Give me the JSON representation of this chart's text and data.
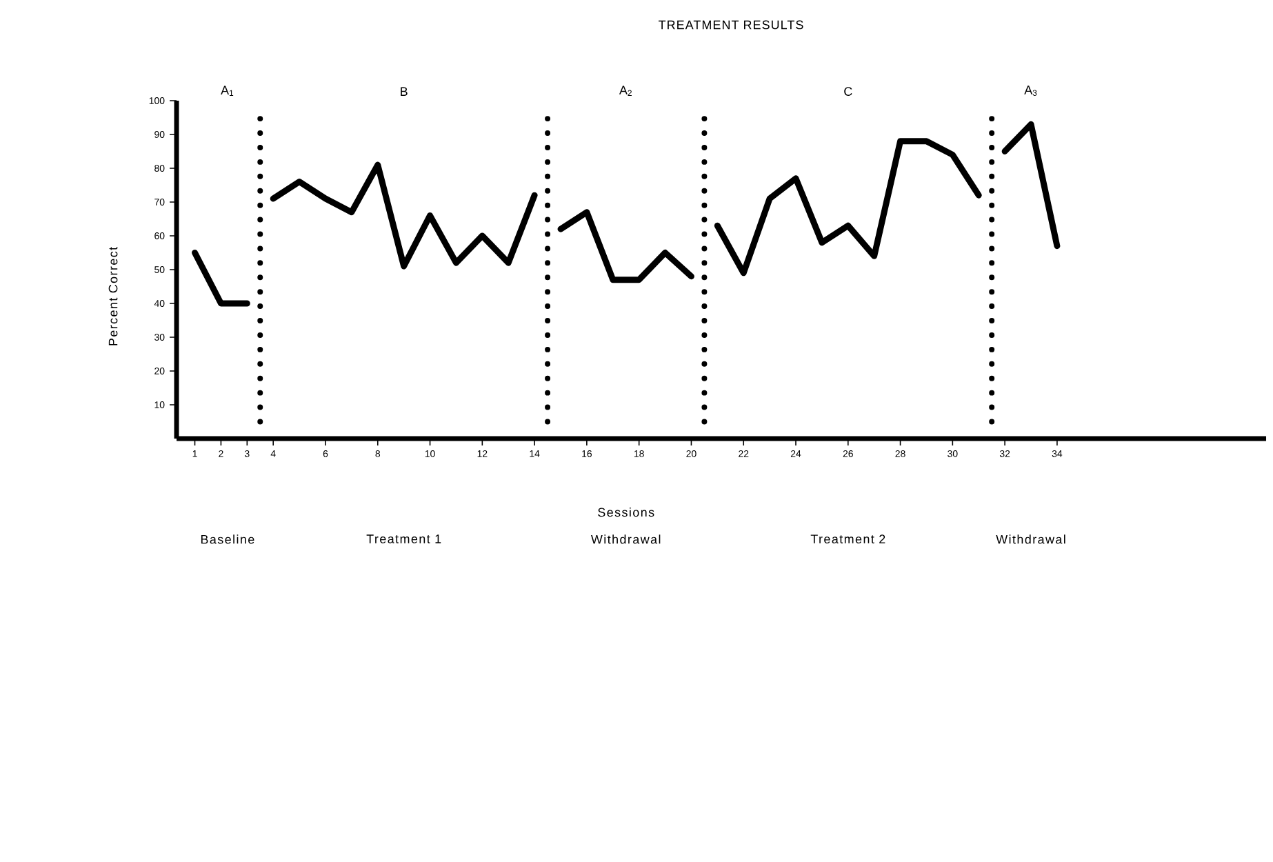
{
  "chart_data": {
    "type": "line",
    "title": "TREATMENT RESULTS",
    "xlabel": "Sessions",
    "ylabel": "Percent Correct",
    "xlim": [
      0.3,
      42
    ],
    "ylim": [
      0,
      100
    ],
    "xticks": [
      1,
      2,
      3,
      4,
      6,
      8,
      10,
      12,
      14,
      16,
      18,
      20,
      22,
      24,
      26,
      28,
      30,
      32,
      34
    ],
    "yticks": [
      10,
      20,
      30,
      40,
      50,
      60,
      70,
      80,
      90,
      100
    ],
    "grid": false,
    "marker": "none",
    "line_style": "solid",
    "series": [
      {
        "color": "#000000",
        "x": [
          1,
          2,
          3
        ],
        "values": [
          55,
          40,
          40
        ]
      },
      {
        "color": "#000000",
        "x": [
          4,
          5,
          6,
          7,
          8,
          9,
          10,
          11,
          12,
          13,
          14
        ],
        "values": [
          71,
          76,
          71,
          67,
          81,
          51,
          66,
          52,
          60,
          52,
          72
        ]
      },
      {
        "color": "#000000",
        "x": [
          15,
          16,
          17,
          18,
          19,
          20
        ],
        "values": [
          62,
          67,
          47,
          47,
          55,
          48
        ]
      },
      {
        "color": "#000000",
        "x": [
          21,
          22,
          23,
          24,
          25,
          26,
          27,
          28,
          29,
          30,
          31
        ],
        "values": [
          63,
          49,
          71,
          77,
          58,
          63,
          54,
          88,
          88,
          84,
          72
        ]
      },
      {
        "color": "#000000",
        "x": [
          32,
          33,
          34
        ],
        "values": [
          85,
          93,
          57
        ]
      }
    ],
    "ref_lines": [
      {
        "axis": "x",
        "value": 3.5,
        "line_style": "dotted",
        "color": "#000000"
      },
      {
        "axis": "x",
        "value": 14.5,
        "line_style": "dotted",
        "color": "#000000"
      },
      {
        "axis": "x",
        "value": 20.5,
        "line_style": "dotted",
        "color": "#000000"
      },
      {
        "axis": "x",
        "value": 31.5,
        "line_style": "dotted",
        "color": "#000000"
      }
    ],
    "annotations": [
      "A$_{1}$",
      "B",
      "A$_{2}$",
      "C",
      "A$_{3}$",
      "Baseline",
      "Treatment 1",
      "Withdrawal",
      "Treatment 2",
      "Withdrawal"
    ]
  }
}
